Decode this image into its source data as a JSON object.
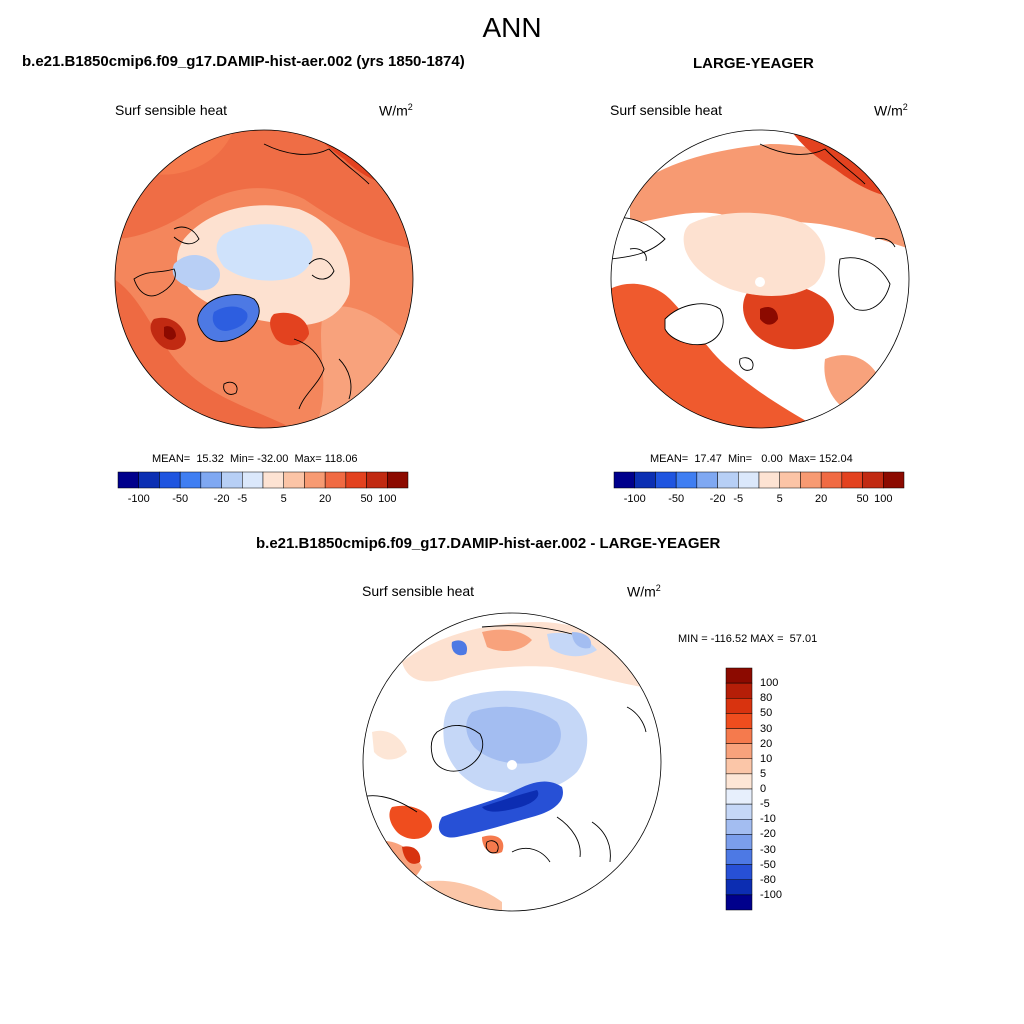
{
  "figure": {
    "title": "ANN"
  },
  "panels": [
    {
      "id": "model",
      "title": "b.e21.B1850cmip6.f09_g17.DAMIP-hist-aer.002 (yrs 1850-1874)",
      "variable": "Surf sensible heat",
      "units_base": "W/m",
      "units_exp": "2",
      "stats": "MEAN=  15.32  Min= -32.00  Max= 118.06",
      "colorbar_ticks": [
        "-100",
        "-50",
        "-20",
        "-5",
        "5",
        "20",
        "50",
        "100"
      ]
    },
    {
      "id": "obs",
      "title": "LARGE-YEAGER",
      "variable": "Surf sensible heat",
      "units_base": "W/m",
      "units_exp": "2",
      "stats": "MEAN=  17.47  Min=   0.00  Max= 152.04",
      "colorbar_ticks": [
        "-100",
        "-50",
        "-20",
        "-5",
        "5",
        "20",
        "50",
        "100"
      ]
    },
    {
      "id": "diff",
      "title": "b.e21.B1850cmip6.f09_g17.DAMIP-hist-aer.002 - LARGE-YEAGER",
      "variable": "Surf sensible heat",
      "units_base": "W/m",
      "units_exp": "2",
      "stats": "MIN = -116.52 MAX =  57.01",
      "colorbar_ticks": [
        "100",
        "80",
        "50",
        "30",
        "20",
        "10",
        "5",
        "0",
        "-5",
        "-10",
        "-20",
        "-30",
        "-50",
        "-80",
        "-100"
      ]
    }
  ],
  "colors": {
    "top_colorbar": [
      "#00008c",
      "#0b2fb3",
      "#1f55e0",
      "#3f7ef2",
      "#7fa8f2",
      "#b7cff5",
      "#dbe8fb",
      "#fde3d3",
      "#fbc4a6",
      "#f79a72",
      "#f06a43",
      "#e3421f",
      "#c12a12",
      "#8c0a00"
    ],
    "diff_colorbar_top_to_bottom": [
      "#8c0a00",
      "#b51e08",
      "#d8330f",
      "#ef4d1e",
      "#f57a4d",
      "#f8a27c",
      "#fbc6a8",
      "#fde6d6",
      "#e7effc",
      "#c5d7f7",
      "#a3bdf1",
      "#7b9eec",
      "#4d79e4",
      "#2750d6",
      "#0c2db2",
      "#00008c"
    ],
    "ocean_pos": "#f07e55",
    "ocean_strong": "#e0421e",
    "ice_neg": "#cfe2fb",
    "land_outline": "#000000"
  }
}
